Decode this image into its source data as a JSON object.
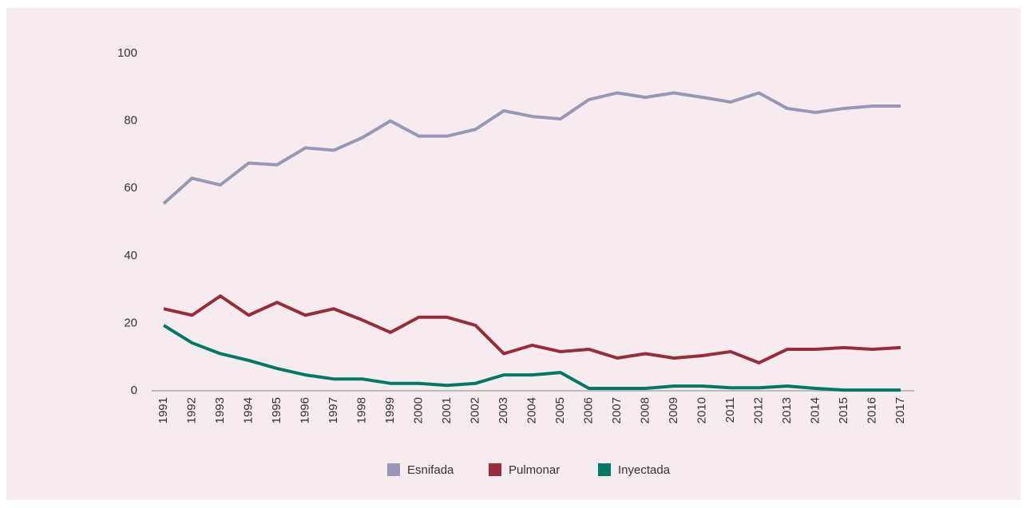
{
  "chart_data": {
    "type": "line",
    "categories": [
      "1991",
      "1992",
      "1993",
      "1994",
      "1995",
      "1996",
      "1997",
      "1998",
      "1999",
      "2000",
      "2001",
      "2002",
      "2003",
      "2004",
      "2005",
      "2006",
      "2007",
      "2008",
      "2009",
      "2010",
      "2011",
      "2012",
      "2013",
      "2014",
      "2015",
      "2016",
      "2017"
    ],
    "series": [
      {
        "name": "Esnifada",
        "color": "#9798b2",
        "values": [
          55.5,
          63,
          61,
          67.5,
          67,
          72,
          71.3,
          75,
          80,
          75.5,
          75.5,
          77.5,
          83,
          81.3,
          80.6,
          86.3,
          88.3,
          87,
          88.3,
          87,
          85.6,
          88.3,
          83.7,
          82.5,
          83.7,
          84.4,
          84.4
        ]
      },
      {
        "name": "Pulmonar",
        "color": "#982b3c",
        "values": [
          24.3,
          22.4,
          28.1,
          22.4,
          26.2,
          22.4,
          24.3,
          21,
          17.3,
          21.8,
          21.8,
          19.4,
          11,
          13.5,
          11.6,
          12.3,
          9.7,
          11,
          9.7,
          10.4,
          11.6,
          8.3,
          12.3,
          12.3,
          12.8,
          12.3,
          12.8
        ]
      },
      {
        "name": "Inyectada",
        "color": "#007a64",
        "values": [
          19.4,
          14.2,
          11,
          9,
          6.6,
          4.7,
          3.5,
          3.5,
          2.2,
          2.2,
          1.6,
          2.2,
          4.7,
          4.7,
          5.4,
          0.7,
          0.7,
          0.7,
          1.4,
          1.4,
          0.9,
          0.9,
          1.4,
          0.7,
          0.2,
          0.2,
          0.2
        ]
      }
    ],
    "ylim": [
      0,
      100
    ],
    "yticks": [
      0,
      20,
      40,
      60,
      80,
      100
    ],
    "grid": false,
    "legend": "bottom"
  }
}
